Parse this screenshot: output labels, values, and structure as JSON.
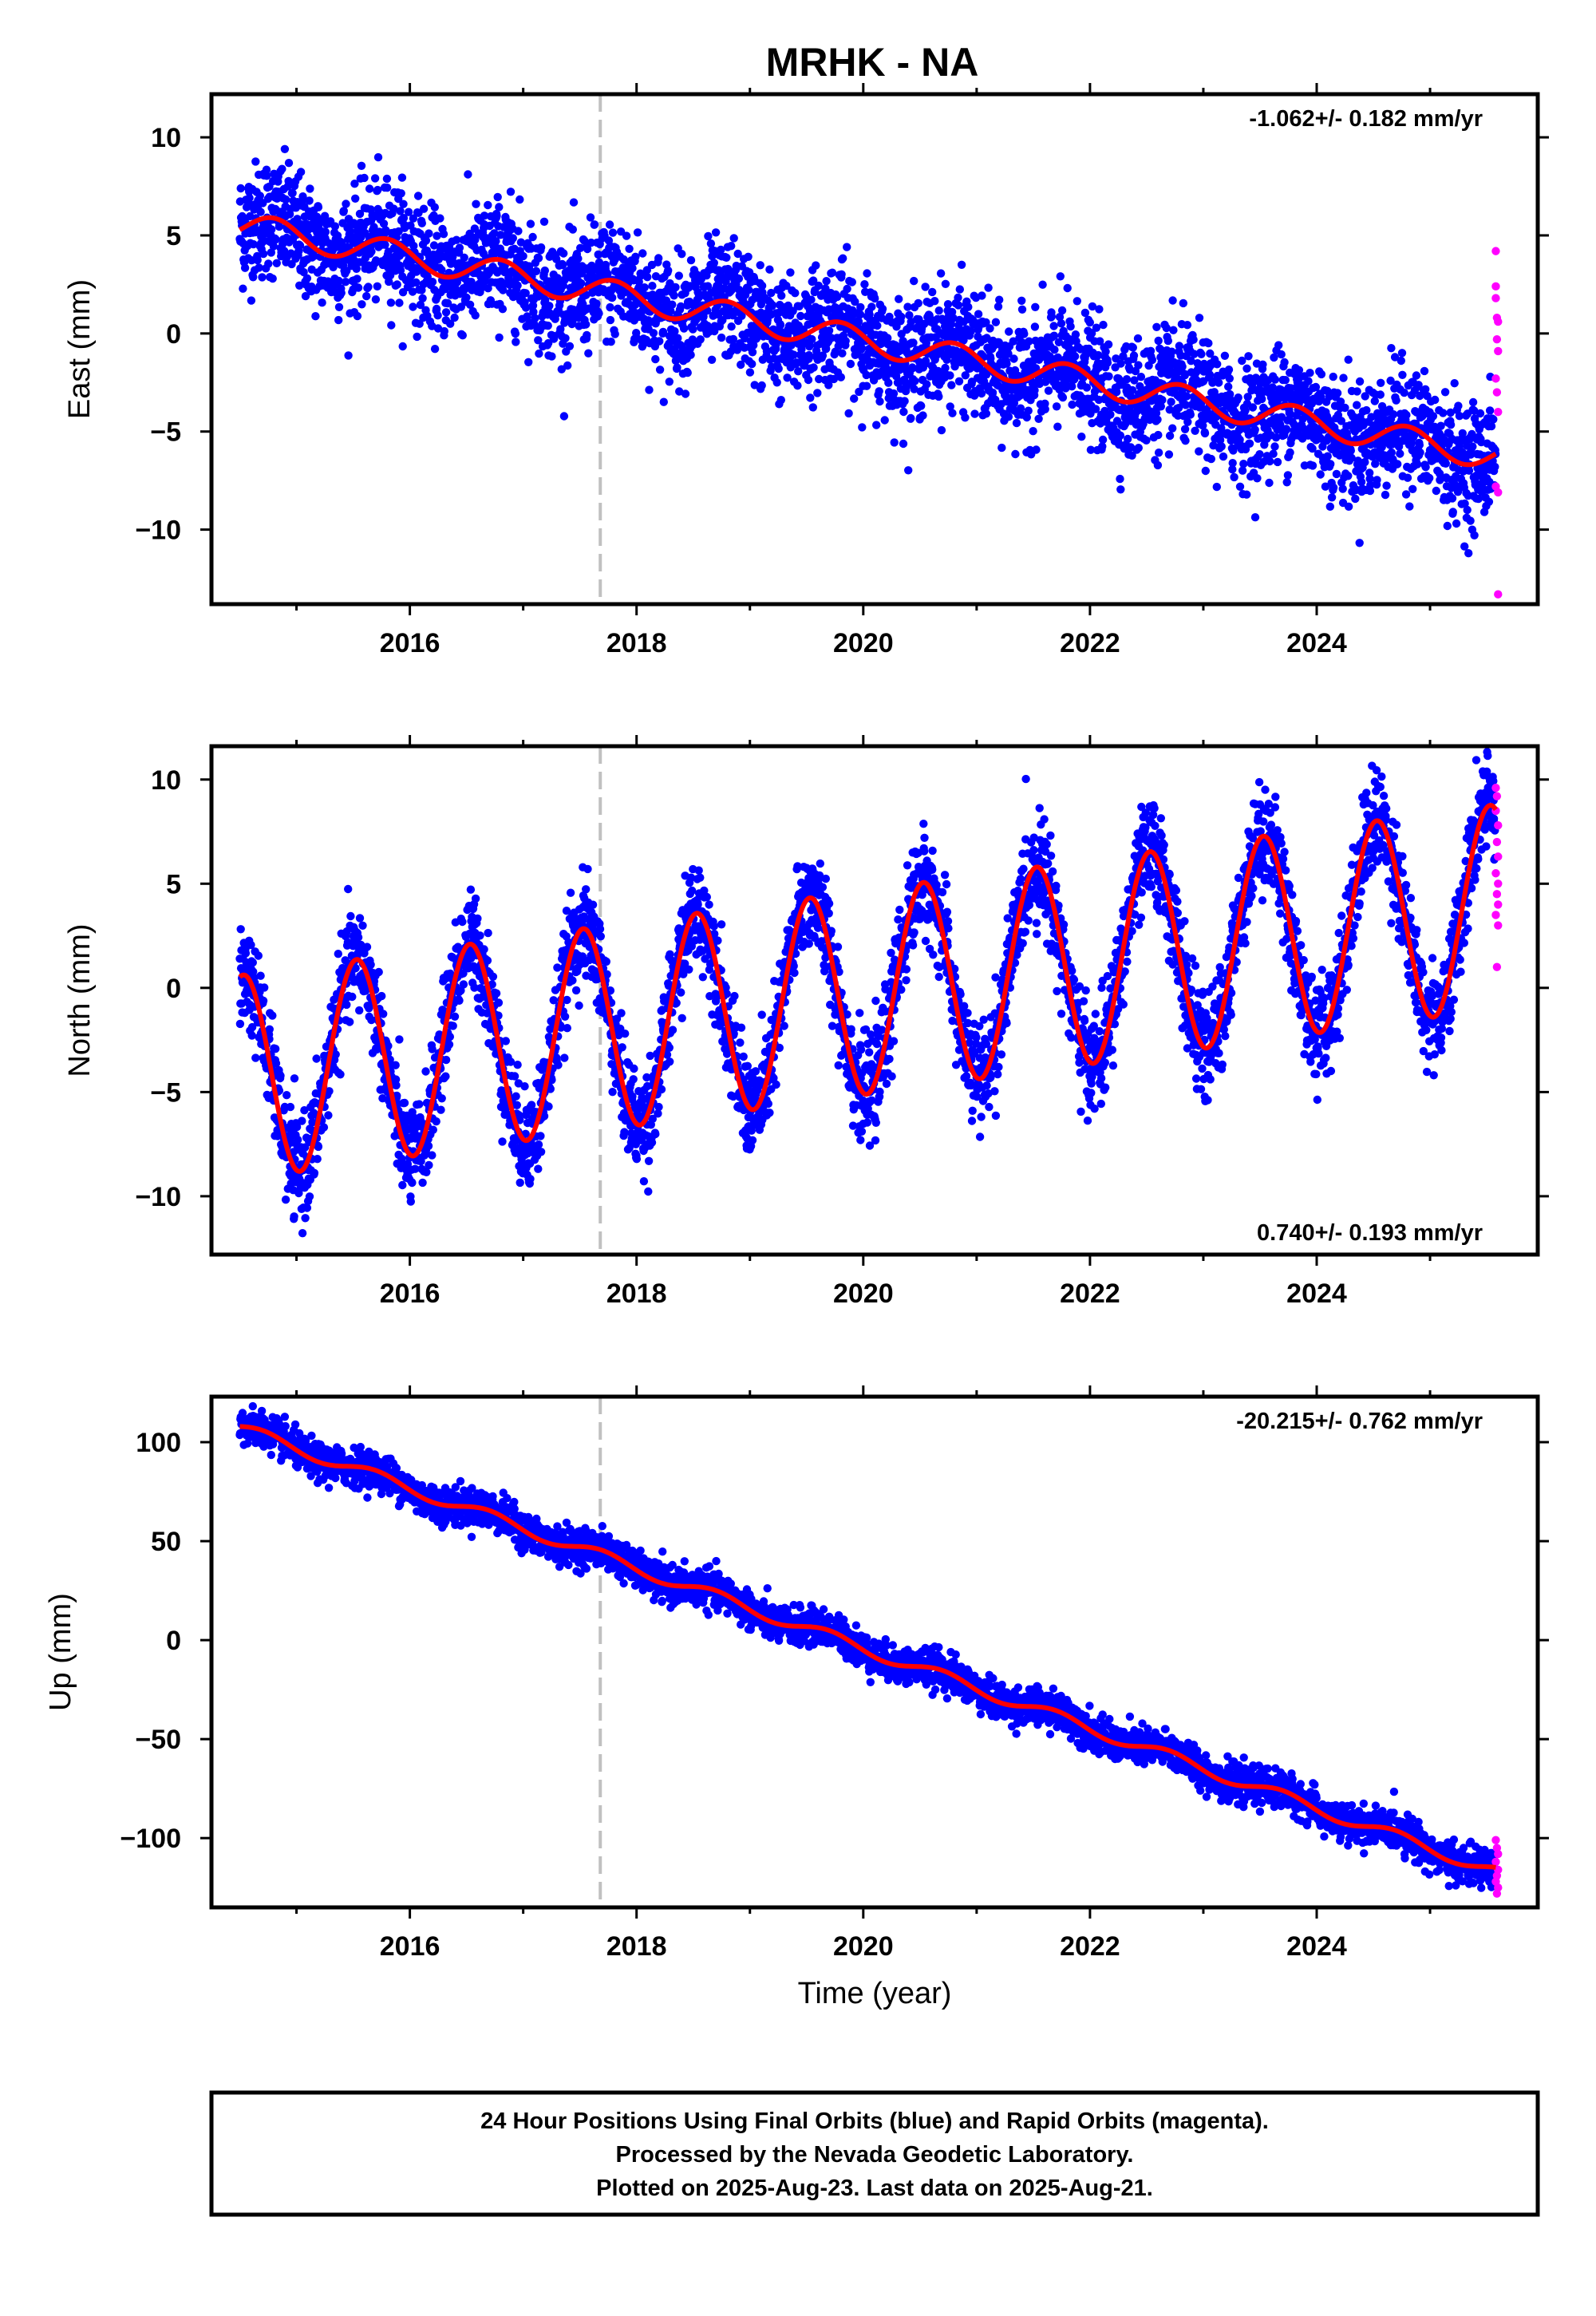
{
  "title": "MRHK - NA",
  "footer": {
    "line1": "24 Hour Positions Using Final Orbits (blue) and Rapid Orbits (magenta).",
    "line2": "Processed by the Nevada Geodetic Laboratory.",
    "line3": "Plotted on 2025-Aug-23. Last data on 2025-Aug-21."
  },
  "colors": {
    "final": "#0000ff",
    "rapid": "#ff00ff",
    "model": "#ff0000",
    "equipment_change": "#c0c0c0"
  },
  "chart_data": [
    {
      "type": "scatter",
      "id": "east",
      "ylabel": "East (mm)",
      "xlabel": "",
      "rate": "-1.062+/- 0.182 mm/yr",
      "rate_position": "top-right",
      "xlim": [
        2014.25,
        2025.95
      ],
      "ylim": [
        -13.8,
        12.2
      ],
      "xticks": [
        2016,
        2018,
        2020,
        2022,
        2024
      ],
      "yticks": [
        10,
        5,
        0,
        -5,
        -10
      ],
      "ytick_labels": [
        "10",
        "5",
        "0",
        "−5",
        "−10"
      ],
      "equipment_change_x": 2017.68,
      "model": {
        "x0": 2014.5,
        "x1": 2025.58,
        "y0": 5.5,
        "slope": -1.062,
        "annual_amp": 0.7,
        "annual_phase": 0.55,
        "offset_after_2015_7": -1.0
      },
      "scatter_sigma": 1.5,
      "rapid_points": [
        {
          "x": 2025.58,
          "y": 4.2
        },
        {
          "x": 2025.58,
          "y": 2.4
        },
        {
          "x": 2025.58,
          "y": 1.8
        },
        {
          "x": 2025.59,
          "y": 0.8
        },
        {
          "x": 2025.6,
          "y": 0.6
        },
        {
          "x": 2025.59,
          "y": -0.3
        },
        {
          "x": 2025.6,
          "y": -0.9
        },
        {
          "x": 2025.58,
          "y": -2.3
        },
        {
          "x": 2025.59,
          "y": -3.0
        },
        {
          "x": 2025.6,
          "y": -4.0
        },
        {
          "x": 2025.58,
          "y": -7.8
        },
        {
          "x": 2025.6,
          "y": -8.1
        },
        {
          "x": 2025.6,
          "y": -13.3
        }
      ]
    },
    {
      "type": "scatter",
      "id": "north",
      "ylabel": "North (mm)",
      "xlabel": "",
      "rate": "0.740+/- 0.193 mm/yr",
      "rate_position": "bottom-right",
      "xlim": [
        2014.25,
        2025.95
      ],
      "ylim": [
        -12.8,
        11.6
      ],
      "xticks": [
        2016,
        2018,
        2020,
        2022,
        2024
      ],
      "yticks": [
        10,
        5,
        0,
        -5,
        -10
      ],
      "ytick_labels": [
        "10",
        "5",
        "0",
        "−5",
        "−10"
      ],
      "equipment_change_x": 2017.68,
      "model": {
        "x0": 2014.5,
        "x1": 2025.58,
        "y0": -4.3,
        "slope": 0.74,
        "annual_amp": 4.9,
        "annual_phase": 0.28
      },
      "scatter_sigma": 1.2,
      "rapid_points": [
        {
          "x": 2025.58,
          "y": 9.6
        },
        {
          "x": 2025.59,
          "y": 9.2
        },
        {
          "x": 2025.58,
          "y": 8.5
        },
        {
          "x": 2025.6,
          "y": 7.8
        },
        {
          "x": 2025.59,
          "y": 7.0
        },
        {
          "x": 2025.6,
          "y": 6.3
        },
        {
          "x": 2025.58,
          "y": 5.5
        },
        {
          "x": 2025.6,
          "y": 5.0
        },
        {
          "x": 2025.59,
          "y": 4.5
        },
        {
          "x": 2025.6,
          "y": 4.0
        },
        {
          "x": 2025.58,
          "y": 3.5
        },
        {
          "x": 2025.6,
          "y": 3.0
        },
        {
          "x": 2025.59,
          "y": 1.0
        }
      ]
    },
    {
      "type": "scatter",
      "id": "up",
      "ylabel": "Up (mm)",
      "xlabel": "Time (year)",
      "rate": "-20.215+/- 0.762 mm/yr",
      "rate_position": "top-right",
      "xlim": [
        2014.25,
        2025.95
      ],
      "ylim": [
        -135,
        123
      ],
      "xticks": [
        2016,
        2018,
        2020,
        2022,
        2024
      ],
      "yticks": [
        100,
        50,
        0,
        -50,
        -100
      ],
      "ytick_labels": [
        "100",
        "50",
        "0",
        "−50",
        "−100"
      ],
      "equipment_change_x": 2017.68,
      "model": {
        "x0": 2014.5,
        "x1": 2025.58,
        "y0": 107,
        "slope": -20.215,
        "annual_amp": 3.0,
        "annual_phase": 0.45,
        "offset_at_equipment": 8
      },
      "scatter_sigma": 4.5,
      "rapid_points": [
        {
          "x": 2025.58,
          "y": -101
        },
        {
          "x": 2025.59,
          "y": -105
        },
        {
          "x": 2025.6,
          "y": -108
        },
        {
          "x": 2025.58,
          "y": -112
        },
        {
          "x": 2025.6,
          "y": -116
        },
        {
          "x": 2025.59,
          "y": -119
        },
        {
          "x": 2025.58,
          "y": -122
        },
        {
          "x": 2025.6,
          "y": -125
        },
        {
          "x": 2025.59,
          "y": -128
        }
      ]
    }
  ]
}
